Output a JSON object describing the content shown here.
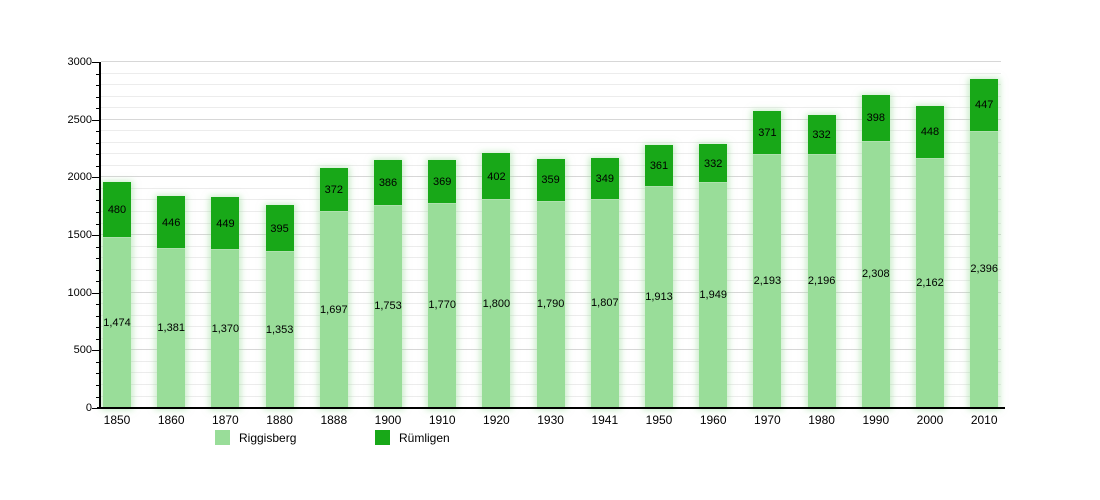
{
  "chart_data": {
    "type": "bar",
    "stacked": true,
    "categories": [
      "1850",
      "1860",
      "1870",
      "1880",
      "1888",
      "1900",
      "1910",
      "1920",
      "1930",
      "1941",
      "1950",
      "1960",
      "1970",
      "1980",
      "1990",
      "2000",
      "2010"
    ],
    "series": [
      {
        "name": "Riggisberg",
        "color": "#99dd99",
        "values": [
          1474,
          1381,
          1370,
          1353,
          1697,
          1753,
          1770,
          1800,
          1790,
          1807,
          1913,
          1949,
          2193,
          2196,
          2308,
          2162,
          2396
        ],
        "labels": [
          "1,474",
          "1,381",
          "1,370",
          "1,353",
          "1,697",
          "1,753",
          "1,770",
          "1,800",
          "1,790",
          "1,807",
          "1,913",
          "1,949",
          "2,193",
          "2,196",
          "2,308",
          "2,162",
          "2,396"
        ]
      },
      {
        "name": "Rümligen",
        "color": "#18a818",
        "values": [
          480,
          446,
          449,
          395,
          372,
          386,
          369,
          402,
          359,
          349,
          361,
          332,
          371,
          332,
          398,
          448,
          447
        ],
        "labels": [
          "480",
          "446",
          "449",
          "395",
          "372",
          "386",
          "369",
          "402",
          "359",
          "349",
          "361",
          "332",
          "371",
          "332",
          "398",
          "448",
          "447"
        ]
      }
    ],
    "title": "",
    "xlabel": "",
    "ylabel": "",
    "ylim": [
      0,
      3000
    ],
    "y_ticks": [
      "0",
      "500",
      "1000",
      "1500",
      "2000",
      "2500",
      "3000"
    ],
    "y_minor_step": 100,
    "grid": "horizontal-minor-and-major",
    "legend_position": "bottom",
    "axis_color": "#000000",
    "background": "#ffffff"
  }
}
